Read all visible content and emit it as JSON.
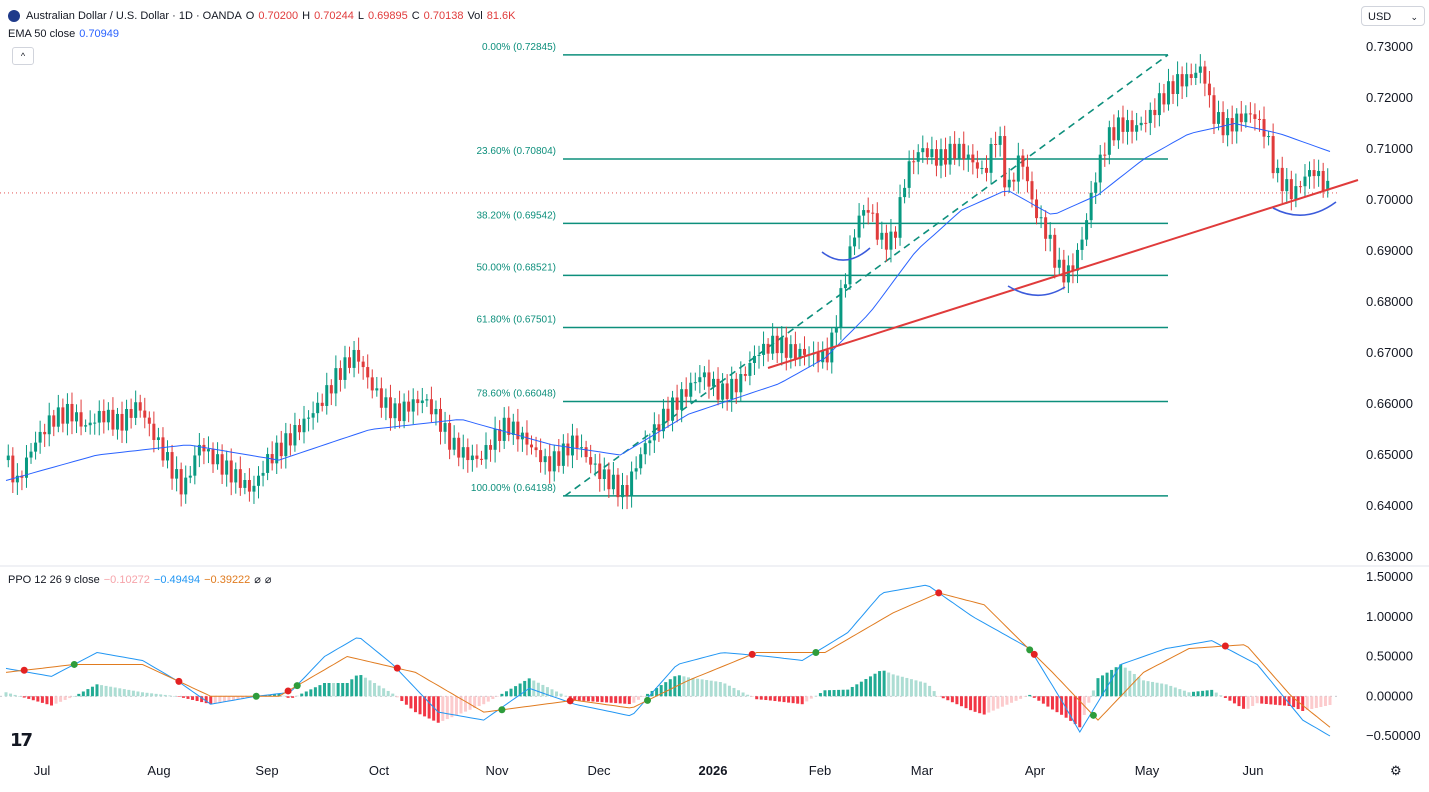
{
  "header": {
    "symbol": "Australian Dollar / U.S. Dollar · 1D · OANDA",
    "o_label": "O",
    "o": "0.70200",
    "h_label": "H",
    "h": "0.70244",
    "l_label": "L",
    "l": "0.69895",
    "c_label": "C",
    "c": "0.70138",
    "vol_label": "Vol",
    "vol": "81.6K",
    "ema_label": "EMA 50 close",
    "ema_value": "0.70949",
    "currency": "USD",
    "ppo_label": "PPO 12 26 9 close",
    "ppo_hist": "−0.10272",
    "ppo_line": "−0.49494",
    "ppo_signal": "−0.39222"
  },
  "colors": {
    "up": "#089981",
    "down": "#e03b3b",
    "ema": "#2962ff",
    "fib": "#0d8f7c",
    "trend": "#e03b3b",
    "ppo_line": "#2196f3",
    "ppo_signal": "#e07b1f",
    "cross_up": "#2e9c3b",
    "cross_down": "#e32222"
  },
  "chart_data": [
    {
      "type": "candlestick",
      "title": "Australian Dollar / U.S. Dollar · 1D · OANDA",
      "x_ticks": [
        "Jul",
        "Aug",
        "Sep",
        "Oct",
        "Nov",
        "Dec",
        "2026",
        "Feb",
        "Mar",
        "Apr",
        "May",
        "Jun"
      ],
      "y_ticks": [
        "0.73000",
        "0.72000",
        "0.71000",
        "0.70000",
        "0.69000",
        "0.68000",
        "0.67000",
        "0.66000",
        "0.65000",
        "0.64000",
        "0.63000"
      ],
      "ylim": [
        0.6275,
        0.7325
      ],
      "close_path": [
        [
          0,
          0.649
        ],
        [
          5,
          0.6445
        ],
        [
          12,
          0.652
        ],
        [
          20,
          0.657
        ],
        [
          28,
          0.6585
        ],
        [
          35,
          0.6555
        ],
        [
          42,
          0.658
        ],
        [
          50,
          0.656
        ],
        [
          58,
          0.66
        ],
        [
          66,
          0.653
        ],
        [
          72,
          0.648
        ],
        [
          78,
          0.643
        ],
        [
          85,
          0.652
        ],
        [
          92,
          0.649
        ],
        [
          100,
          0.646
        ],
        [
          108,
          0.643
        ],
        [
          115,
          0.649
        ],
        [
          122,
          0.652
        ],
        [
          130,
          0.656
        ],
        [
          138,
          0.66
        ],
        [
          146,
          0.666
        ],
        [
          154,
          0.67
        ],
        [
          160,
          0.664
        ],
        [
          166,
          0.66
        ],
        [
          172,
          0.658
        ],
        [
          178,
          0.66
        ],
        [
          184,
          0.661
        ],
        [
          190,
          0.657
        ],
        [
          196,
          0.652
        ],
        [
          202,
          0.65
        ],
        [
          208,
          0.649
        ],
        [
          214,
          0.653
        ],
        [
          220,
          0.656
        ],
        [
          226,
          0.654
        ],
        [
          232,
          0.651
        ],
        [
          238,
          0.648
        ],
        [
          244,
          0.65
        ],
        [
          250,
          0.653
        ],
        [
          256,
          0.649
        ],
        [
          262,
          0.646
        ],
        [
          268,
          0.644
        ],
        [
          272,
          0.642
        ],
        [
          276,
          0.647
        ],
        [
          282,
          0.653
        ],
        [
          290,
          0.658
        ],
        [
          298,
          0.662
        ],
        [
          306,
          0.666
        ],
        [
          314,
          0.662
        ],
        [
          322,
          0.664
        ],
        [
          330,
          0.67
        ],
        [
          338,
          0.672
        ],
        [
          346,
          0.67
        ],
        [
          352,
          0.67
        ],
        [
          358,
          0.669
        ],
        [
          362,
          0.67
        ],
        [
          366,
          0.679
        ],
        [
          369,
          0.685
        ],
        [
          372,
          0.692
        ],
        [
          376,
          0.698
        ],
        [
          380,
          0.698
        ],
        [
          384,
          0.692
        ],
        [
          390,
          0.692
        ],
        [
          396,
          0.706
        ],
        [
          402,
          0.71
        ],
        [
          410,
          0.708
        ],
        [
          418,
          0.71
        ],
        [
          424,
          0.708
        ],
        [
          430,
          0.705
        ],
        [
          436,
          0.714
        ],
        [
          440,
          0.701
        ],
        [
          446,
          0.709
        ],
        [
          452,
          0.698
        ],
        [
          458,
          0.693
        ],
        [
          462,
          0.687
        ],
        [
          466,
          0.685
        ],
        [
          470,
          0.688
        ],
        [
          474,
          0.694
        ],
        [
          478,
          0.703
        ],
        [
          484,
          0.712
        ],
        [
          490,
          0.715
        ],
        [
          496,
          0.714
        ],
        [
          502,
          0.716
        ],
        [
          508,
          0.72
        ],
        [
          514,
          0.723
        ],
        [
          520,
          0.724
        ],
        [
          526,
          0.726
        ],
        [
          530,
          0.717
        ],
        [
          536,
          0.714
        ],
        [
          542,
          0.716
        ],
        [
          548,
          0.717
        ],
        [
          554,
          0.713
        ],
        [
          558,
          0.705
        ],
        [
          562,
          0.703
        ],
        [
          566,
          0.701
        ],
        [
          570,
          0.704
        ],
        [
          574,
          0.706
        ],
        [
          578,
          0.704
        ],
        [
          582,
          0.7014
        ]
      ],
      "ema50_path": [
        [
          0,
          0.645
        ],
        [
          40,
          0.65
        ],
        [
          80,
          0.652
        ],
        [
          120,
          0.649
        ],
        [
          160,
          0.655
        ],
        [
          200,
          0.657
        ],
        [
          240,
          0.652
        ],
        [
          270,
          0.65
        ],
        [
          300,
          0.658
        ],
        [
          340,
          0.664
        ],
        [
          360,
          0.669
        ],
        [
          380,
          0.678
        ],
        [
          400,
          0.69
        ],
        [
          420,
          0.698
        ],
        [
          440,
          0.702
        ],
        [
          460,
          0.697
        ],
        [
          480,
          0.701
        ],
        [
          500,
          0.708
        ],
        [
          520,
          0.713
        ],
        [
          540,
          0.715
        ],
        [
          560,
          0.713
        ],
        [
          582,
          0.7095
        ]
      ],
      "fibonacci": [
        {
          "label": "0.00% (0.72845)",
          "value": 0.72845
        },
        {
          "label": "23.60% (0.70804)",
          "value": 0.70804
        },
        {
          "label": "38.20% (0.69542)",
          "value": 0.69542
        },
        {
          "label": "50.00% (0.68521)",
          "value": 0.68521
        },
        {
          "label": "61.80% (0.67501)",
          "value": 0.67501
        },
        {
          "label": "78.60% (0.66048)",
          "value": 0.66048
        },
        {
          "label": "100.00% (0.64198)",
          "value": 0.64198
        }
      ],
      "last_price": 0.70138
    },
    {
      "type": "line",
      "title": "PPO 12 26 9 close",
      "y_ticks": [
        "1.50000",
        "1.00000",
        "0.50000",
        "0.00000",
        "−0.50000"
      ],
      "ylim": [
        -0.6,
        1.55
      ],
      "ppo_path": [
        [
          0,
          0.35
        ],
        [
          20,
          0.25
        ],
        [
          40,
          0.55
        ],
        [
          60,
          0.45
        ],
        [
          75,
          0.2
        ],
        [
          90,
          -0.1
        ],
        [
          110,
          0.0
        ],
        [
          125,
          0.05
        ],
        [
          140,
          0.5
        ],
        [
          155,
          0.75
        ],
        [
          170,
          0.4
        ],
        [
          190,
          -0.2
        ],
        [
          210,
          -0.3
        ],
        [
          230,
          0.1
        ],
        [
          250,
          -0.1
        ],
        [
          275,
          -0.25
        ],
        [
          295,
          0.4
        ],
        [
          315,
          0.55
        ],
        [
          335,
          0.5
        ],
        [
          350,
          0.45
        ],
        [
          370,
          0.8
        ],
        [
          385,
          1.3
        ],
        [
          405,
          1.4
        ],
        [
          425,
          1.0
        ],
        [
          450,
          0.6
        ],
        [
          465,
          -0.1
        ],
        [
          472,
          -0.45
        ],
        [
          490,
          0.4
        ],
        [
          510,
          0.6
        ],
        [
          530,
          0.7
        ],
        [
          550,
          0.4
        ],
        [
          570,
          -0.3
        ],
        [
          582,
          -0.5
        ]
      ],
      "signal_path": [
        [
          0,
          0.3
        ],
        [
          30,
          0.4
        ],
        [
          60,
          0.4
        ],
        [
          90,
          0.0
        ],
        [
          120,
          0.0
        ],
        [
          150,
          0.5
        ],
        [
          180,
          0.3
        ],
        [
          210,
          -0.2
        ],
        [
          250,
          -0.05
        ],
        [
          275,
          -0.15
        ],
        [
          300,
          0.2
        ],
        [
          330,
          0.55
        ],
        [
          360,
          0.55
        ],
        [
          390,
          1.05
        ],
        [
          410,
          1.3
        ],
        [
          430,
          1.15
        ],
        [
          460,
          0.3
        ],
        [
          480,
          -0.3
        ],
        [
          500,
          0.3
        ],
        [
          520,
          0.6
        ],
        [
          545,
          0.65
        ],
        [
          565,
          0.0
        ],
        [
          582,
          -0.39
        ]
      ]
    }
  ]
}
